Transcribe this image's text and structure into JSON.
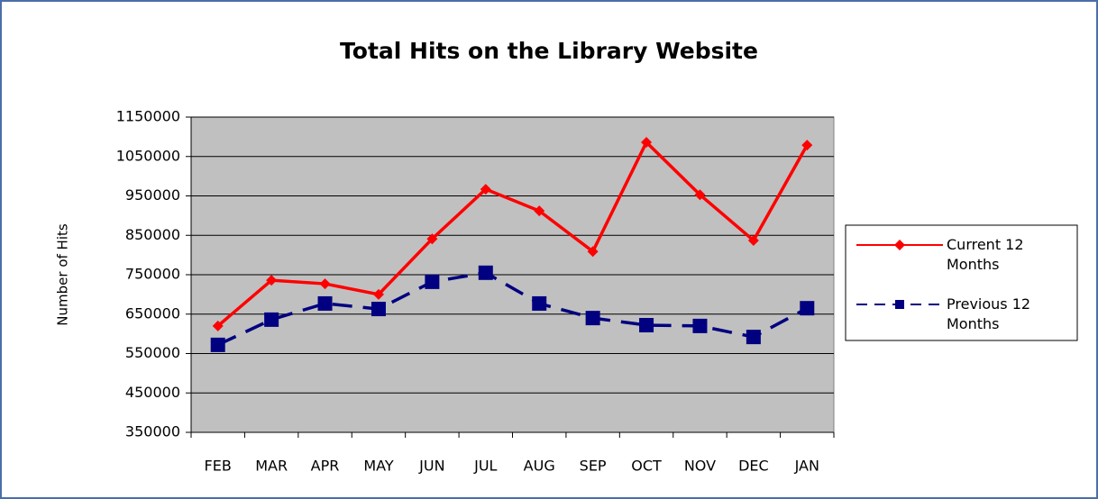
{
  "chart_data": {
    "type": "line",
    "title": "Total Hits on the Library Website",
    "y_label": "Number of Hits",
    "categories": [
      "FEB",
      "MAR",
      "APR",
      "MAY",
      "JUN",
      "JUL",
      "AUG",
      "SEP",
      "OCT",
      "NOV",
      "DEC",
      "JAN"
    ],
    "series": [
      {
        "name": "Current 12 Months",
        "color": "#ff0000",
        "marker": "diamond",
        "dashed": false,
        "values": [
          620000,
          736000,
          727000,
          700000,
          841000,
          967000,
          912000,
          809000,
          1086000,
          953000,
          837000,
          1079000
        ]
      },
      {
        "name": "Previous 12 Months",
        "color": "#000080",
        "marker": "square",
        "dashed": true,
        "values": [
          572000,
          636000,
          677000,
          663000,
          732000,
          755000,
          677000,
          640000,
          622000,
          620000,
          592000,
          665000
        ]
      }
    ],
    "ylim": [
      350000,
      1150000
    ],
    "yticks": [
      350000,
      450000,
      550000,
      650000,
      750000,
      850000,
      950000,
      1050000,
      1150000
    ],
    "grid": true,
    "legend": "right",
    "plot_background": "#c0c0c0"
  }
}
